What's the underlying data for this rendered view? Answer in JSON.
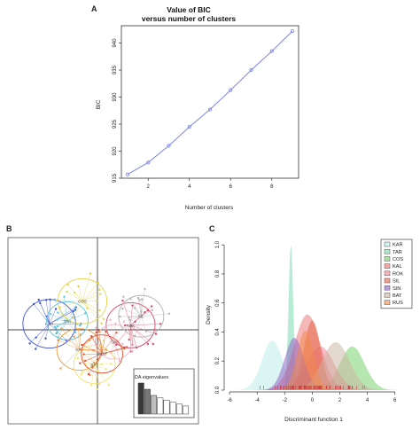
{
  "panels": {
    "a": {
      "letter": "A"
    },
    "b": {
      "letter": "B"
    },
    "c": {
      "letter": "C"
    }
  },
  "chart_data": [
    {
      "id": "bic",
      "type": "line",
      "title": "Value of BIC",
      "subtitle": "versus number of clusters",
      "xlabel": "Number of clusters",
      "ylabel": "BIC",
      "x": [
        1,
        2,
        3,
        4,
        5,
        6,
        7,
        8,
        9
      ],
      "y": [
        915.7,
        917.9,
        921.0,
        924.5,
        927.7,
        931.3,
        935.0,
        938.5,
        942.2
      ],
      "xticks": [
        2,
        4,
        6,
        8
      ],
      "yticks": [
        915,
        920,
        925,
        930,
        935,
        940
      ],
      "xlim": [
        0.7,
        9.3
      ],
      "ylim": [
        915,
        943.2
      ],
      "line_color": "#7d85e8",
      "grid": false
    },
    {
      "id": "dapc-scatter",
      "type": "scatter",
      "inset_title": "DA eigenvalues",
      "eigenvalues": [
        100,
        80,
        60,
        52,
        45,
        38,
        32,
        26
      ],
      "eigen_colors": [
        "#3a3a3a",
        "#777777",
        "#bdbdbd",
        "#ffffff",
        "#ffffff",
        "#ffffff",
        "#ffffff",
        "#ffffff"
      ],
      "clusters": [
        {
          "label": "KAR",
          "color": "#3f51d6",
          "center": [
            -3.2,
            0.4
          ],
          "spread": 1.4
        },
        {
          "label": "TAR",
          "color": "#5cc5dc",
          "center": [
            -2.0,
            0.6
          ],
          "spread": 1.1
        },
        {
          "label": "COS",
          "color": "#e4d24a",
          "center": [
            -1.0,
            1.9
          ],
          "spread": 1.3
        },
        {
          "label": "KAL",
          "color": "#e8973a",
          "center": [
            -1.2,
            -1.3
          ],
          "spread": 1.2
        },
        {
          "label": "ROK",
          "color": "#d94b6a",
          "center": [
            2.2,
            0.3
          ],
          "spread": 1.3
        },
        {
          "label": "SIL",
          "color": "#b5b5b5",
          "center": [
            2.9,
            0.9
          ],
          "spread": 1.2
        },
        {
          "label": "SIN",
          "color": "#f0b7c3",
          "center": [
            1.1,
            -0.8
          ],
          "spread": 1.0
        },
        {
          "label": "BAT",
          "color": "#f2e270",
          "center": [
            -0.2,
            -2.3
          ],
          "spread": 1.1
        },
        {
          "label": "RUS",
          "color": "#e05535",
          "center": [
            0.3,
            -1.6
          ],
          "spread": 1.1
        }
      ]
    },
    {
      "id": "density",
      "type": "area",
      "xlabel": "Discriminant function 1",
      "ylabel": "Density",
      "xlim": [
        -6.2,
        6.6
      ],
      "ylim": [
        0,
        1.05
      ],
      "xticks": [
        -6,
        -4,
        -2,
        0,
        2,
        4,
        6
      ],
      "yticks": [
        0.0,
        0.2,
        0.4,
        0.6,
        0.8,
        1.0
      ],
      "legend_position": "top-right",
      "series": [
        {
          "name": "KAR",
          "color": "#b6ece6",
          "mu": -2.9,
          "sd": 0.75,
          "peak": 0.34
        },
        {
          "name": "TAR",
          "color": "#6fd8a8",
          "mu": -1.55,
          "sd": 0.17,
          "peak": 1.0
        },
        {
          "name": "COS",
          "color": "#6fcf64",
          "mu": 2.9,
          "sd": 0.9,
          "peak": 0.3
        },
        {
          "name": "KAL",
          "color": "#ee6f6f",
          "mu": -0.35,
          "sd": 0.95,
          "peak": 0.52
        },
        {
          "name": "ROK",
          "color": "#ee7f91",
          "mu": 0.6,
          "sd": 1.0,
          "peak": 0.3
        },
        {
          "name": "SIL",
          "color": "#e2603c",
          "mu": 0.0,
          "sd": 0.6,
          "peak": 0.48
        },
        {
          "name": "SIN",
          "color": "#8b5cc8",
          "mu": -1.3,
          "sd": 0.7,
          "peak": 0.36
        },
        {
          "name": "BAT",
          "color": "#c9b4a0",
          "mu": 1.7,
          "sd": 1.0,
          "peak": 0.33
        },
        {
          "name": "RUS",
          "color": "#f28a4a",
          "mu": -0.5,
          "sd": 0.6,
          "peak": 0.41
        }
      ]
    }
  ]
}
